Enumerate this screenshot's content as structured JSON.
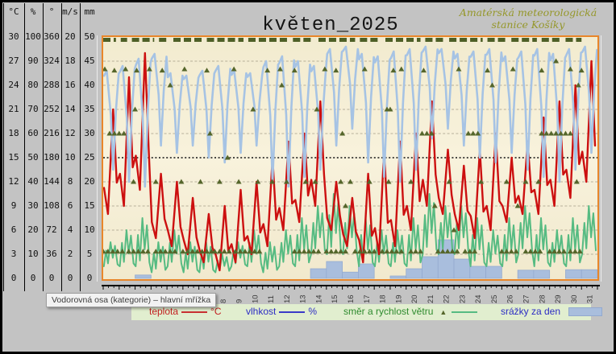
{
  "window": {
    "background": "#c3c3c3"
  },
  "header": {
    "title": "květen_2025",
    "station_line1": "Amatérská meteorologická",
    "station_line2": "stanice Košíky"
  },
  "value_axes_table": {
    "headers": [
      "°C",
      "%",
      "°",
      "m/s",
      "mm"
    ],
    "rows": [
      [
        30,
        100,
        360,
        20,
        50
      ],
      [
        27,
        90,
        324,
        18,
        45
      ],
      [
        24,
        80,
        288,
        16,
        40
      ],
      [
        21,
        70,
        252,
        14,
        35
      ],
      [
        18,
        60,
        216,
        12,
        30
      ],
      [
        15,
        50,
        180,
        10,
        25
      ],
      [
        12,
        40,
        144,
        8,
        20
      ],
      [
        9,
        30,
        108,
        6,
        15
      ],
      [
        6,
        20,
        72,
        4,
        10
      ],
      [
        3,
        10,
        36,
        2,
        5
      ],
      [
        0,
        0,
        0,
        0,
        0
      ]
    ]
  },
  "tooltip": {
    "text": "Vodorovná osa (kategorie)  – hlavní mřížka"
  },
  "legend": {
    "temperature_label": "teplota",
    "temperature_unit": "°C",
    "humidity_label": "vlhkost",
    "humidity_unit": "%",
    "wind_label": "směr a rychlost větru",
    "precip_label": "srážky za den"
  },
  "colors": {
    "temperature": "#cc1010",
    "humidity": "#a6c3e4",
    "wind_speed": "#56bb82",
    "wind_direction": "#55662b",
    "precipitation_fill": "#a9bedd",
    "plot_background": "#f5eed6",
    "plot_border": "#e8862a",
    "gridline": "#a39b85",
    "legend_strip": "#e1eecf"
  },
  "chart_data": {
    "type": "line",
    "title": "květen_2025",
    "x_categories_days": [
      1,
      2,
      3,
      4,
      5,
      6,
      7,
      8,
      9,
      10,
      11,
      12,
      13,
      14,
      15,
      16,
      17,
      18,
      19,
      20,
      21,
      22,
      23,
      24,
      25,
      26,
      27,
      28,
      29,
      30,
      31
    ],
    "axis_ranges": {
      "temperature_c": [
        0,
        30
      ],
      "humidity_pct": [
        0,
        100
      ],
      "wind_direction_deg": [
        0,
        360
      ],
      "wind_speed_ms": [
        0,
        20
      ],
      "precipitation_mm": [
        0,
        50
      ]
    },
    "grid": {
      "major_rows": 10,
      "middle_row_emphasized": true
    },
    "series": {
      "temperature_c": {
        "daily_min": [
          8,
          9,
          11,
          5,
          4,
          3,
          2,
          1,
          2,
          3,
          4,
          6,
          7,
          9,
          6,
          4,
          2,
          3,
          4,
          6,
          9,
          8,
          6,
          5,
          6,
          7,
          8,
          8,
          9,
          10,
          12
        ],
        "daily_max": [
          21,
          25,
          28,
          13,
          12,
          10,
          8,
          9,
          11,
          12,
          15,
          17,
          18,
          22,
          12,
          10,
          13,
          16,
          17,
          18,
          22,
          16,
          14,
          16,
          18,
          15,
          17,
          20,
          22,
          24,
          27
        ]
      },
      "humidity_pct": {
        "daily_min": [
          45,
          40,
          38,
          55,
          52,
          55,
          50,
          48,
          52,
          55,
          40,
          38,
          42,
          45,
          55,
          62,
          48,
          42,
          40,
          45,
          58,
          62,
          55,
          50,
          48,
          52,
          45,
          42,
          40,
          45,
          52
        ],
        "daily_max": [
          86,
          88,
          91,
          93,
          85,
          84,
          86,
          88,
          86,
          85,
          90,
          92,
          90,
          88,
          95,
          96,
          93,
          92,
          94,
          95,
          96,
          95,
          93,
          94,
          95,
          92,
          94,
          95,
          93,
          95,
          96
        ]
      },
      "wind_speed_ms": {
        "daily_min": [
          1,
          1,
          1,
          0.5,
          1,
          0.5,
          0.5,
          0.5,
          1,
          1,
          0.5,
          1,
          1,
          2,
          2,
          2,
          1,
          1,
          1,
          1,
          2,
          2,
          2,
          1,
          1,
          1,
          2,
          1,
          1,
          1,
          2
        ],
        "daily_max": [
          3,
          4,
          5,
          3,
          4,
          3,
          3,
          2,
          3,
          4,
          3,
          4,
          5,
          6,
          7,
          6,
          5,
          4,
          4,
          5,
          7,
          6,
          6,
          5,
          4,
          5,
          6,
          5,
          4,
          5,
          6
        ]
      },
      "wind_direction_deg": {
        "north_360_segments": [
          [
            1,
            1.8
          ],
          [
            2.1,
            2.5
          ],
          [
            2.8,
            4.2
          ],
          [
            4.5,
            5.1
          ],
          [
            5.4,
            7.2
          ],
          [
            7.5,
            9.8
          ],
          [
            10.1,
            12.6
          ],
          [
            12.9,
            14.2
          ],
          [
            14.5,
            16.8
          ],
          [
            17.1,
            18.4
          ],
          [
            18.7,
            20.9
          ],
          [
            21.2,
            22.4
          ],
          [
            22.7,
            24.8
          ],
          [
            25.1,
            26.3
          ],
          [
            26.6,
            28.2
          ],
          [
            28.5,
            29.7
          ],
          [
            30,
            31
          ]
        ],
        "nne_40_segments": [
          [
            1,
            2.2
          ],
          [
            2.6,
            4
          ],
          [
            4.3,
            5.6
          ],
          [
            6,
            7.8
          ],
          [
            8,
            9
          ],
          [
            9.3,
            11
          ],
          [
            13,
            14.6
          ],
          [
            15,
            16.4
          ],
          [
            16.8,
            18.2
          ],
          [
            18.5,
            20
          ],
          [
            20.3,
            21.2
          ],
          [
            22,
            23.4
          ],
          [
            23.7,
            24.4
          ],
          [
            26,
            27.2
          ],
          [
            27.5,
            28.6
          ],
          [
            29,
            30
          ],
          [
            30.3,
            31
          ]
        ],
        "sw_216_segments": [
          [
            1.4,
            2.4
          ],
          [
            21,
            21.8
          ],
          [
            23.9,
            24.5
          ],
          [
            28.5,
            30.6
          ]
        ],
        "points": [
          [
            1.1,
            312
          ],
          [
            1.7,
            310
          ],
          [
            2.4,
            312
          ],
          [
            3.1,
            310
          ],
          [
            3.9,
            312
          ],
          [
            4.7,
            310
          ],
          [
            6.1,
            312
          ],
          [
            7.5,
            310
          ],
          [
            9.2,
            312
          ],
          [
            11.3,
            310
          ],
          [
            12.1,
            312
          ],
          [
            13,
            310
          ],
          [
            14.9,
            312
          ],
          [
            15.6,
            310
          ],
          [
            17.4,
            312
          ],
          [
            19.2,
            310
          ],
          [
            19.7,
            312
          ],
          [
            21.1,
            310
          ],
          [
            23.3,
            312
          ],
          [
            25.1,
            310
          ],
          [
            26.7,
            312
          ],
          [
            28.5,
            310
          ],
          [
            30.3,
            312
          ],
          [
            31,
            310
          ],
          [
            2.9,
            144
          ],
          [
            4.3,
            144
          ],
          [
            5.9,
            144
          ],
          [
            7.1,
            144
          ],
          [
            8.3,
            144
          ],
          [
            9.5,
            144
          ],
          [
            10.7,
            144
          ],
          [
            12.5,
            144
          ],
          [
            13.7,
            144
          ],
          [
            14.3,
            144
          ],
          [
            15.9,
            144
          ],
          [
            16.5,
            144
          ],
          [
            17.7,
            144
          ],
          [
            18.9,
            144
          ],
          [
            20.3,
            144
          ],
          [
            22.7,
            144
          ],
          [
            24.7,
            144
          ],
          [
            26.3,
            144
          ],
          [
            27.5,
            144
          ],
          [
            28.3,
            144
          ],
          [
            30.7,
            144
          ],
          [
            3,
            252
          ],
          [
            5.2,
            288
          ],
          [
            8.8,
            180
          ],
          [
            10.4,
            252
          ],
          [
            12.2,
            288
          ],
          [
            14.4,
            252
          ],
          [
            16.2,
            108
          ],
          [
            18.8,
            252
          ],
          [
            19,
            252
          ],
          [
            21.8,
            108
          ],
          [
            23,
            72
          ],
          [
            25.4,
            288
          ],
          [
            27,
            108
          ],
          [
            29.4,
            324
          ],
          [
            30.8,
            288
          ],
          [
            7.7,
            216
          ],
          [
            11.6,
            144
          ],
          [
            16,
            216
          ]
        ]
      },
      "precipitation_mm_daily": [
        0,
        0,
        0.7,
        0,
        0,
        0,
        0,
        0,
        0,
        0,
        0,
        0,
        0,
        2,
        3.5,
        1.3,
        3,
        0,
        0.5,
        2,
        4.5,
        8,
        4,
        2.5,
        2.5,
        0,
        1.7,
        1.7,
        0,
        1.8,
        1.8
      ]
    }
  }
}
